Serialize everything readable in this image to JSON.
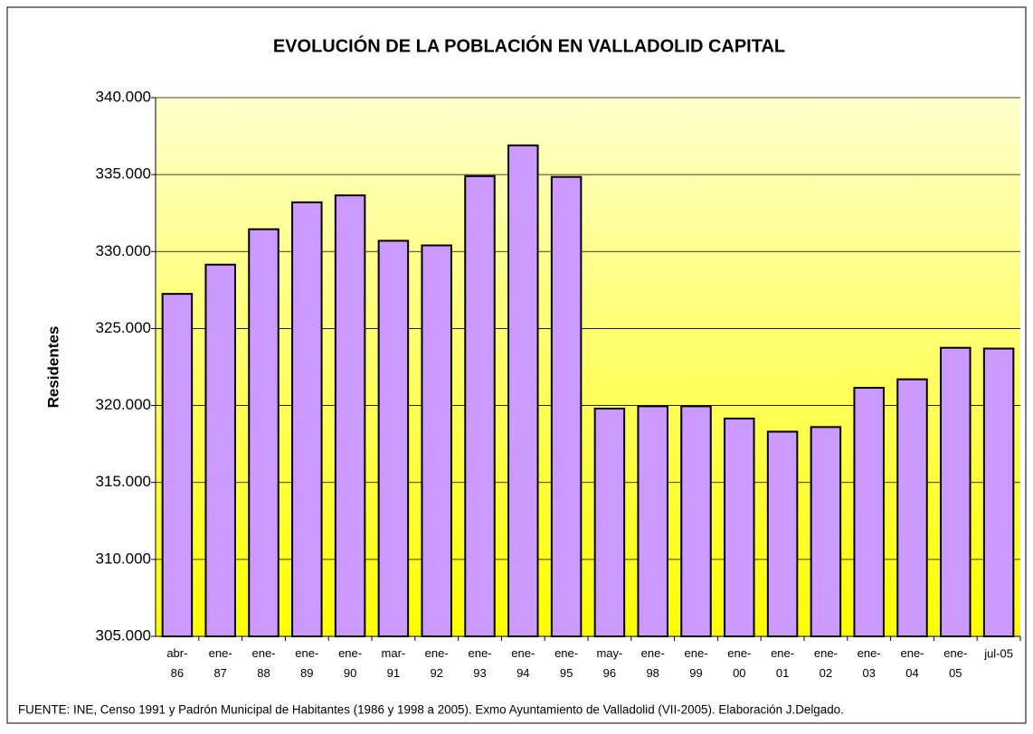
{
  "chart_data": {
    "type": "bar",
    "title": "EVOLUCIÓN DE LA POBLACIÓN EN VALLADOLID CAPITAL",
    "y_label": "Residentes",
    "footer": "FUENTE: INE, Censo 1991 y Padrón Municipal de Habitantes (1986 y 1998 a 2005). Exmo Ayuntamiento de Valladolid (VII-2005). Elaboración J.Delgado.",
    "categories": [
      "abr-86",
      "ene-87",
      "ene-88",
      "ene-89",
      "ene-90",
      "mar-91",
      "ene-92",
      "ene-93",
      "ene-94",
      "ene-95",
      "may-96",
      "ene-98",
      "ene-99",
      "ene-00",
      "ene-01",
      "ene-02",
      "ene-03",
      "ene-04",
      "ene-05",
      "jul-05"
    ],
    "values": [
      327250,
      329150,
      331450,
      333200,
      333650,
      330700,
      330400,
      334900,
      336900,
      334850,
      319800,
      319950,
      319950,
      319150,
      318300,
      318600,
      321150,
      321700,
      323750,
      323700
    ],
    "color": "#cc99ff",
    "ylim": [
      305000,
      340000
    ],
    "yticks": [
      {
        "value": 305000,
        "label": "305.000"
      },
      {
        "value": 310000,
        "label": "310.000"
      },
      {
        "value": 315000,
        "label": "315.000"
      },
      {
        "value": 320000,
        "label": "320.000"
      },
      {
        "value": 325000,
        "label": "325.000"
      },
      {
        "value": 330000,
        "label": "330.000"
      },
      {
        "value": 335000,
        "label": "335.000"
      },
      {
        "value": 340000,
        "label": "340.000"
      }
    ],
    "grid": true
  }
}
